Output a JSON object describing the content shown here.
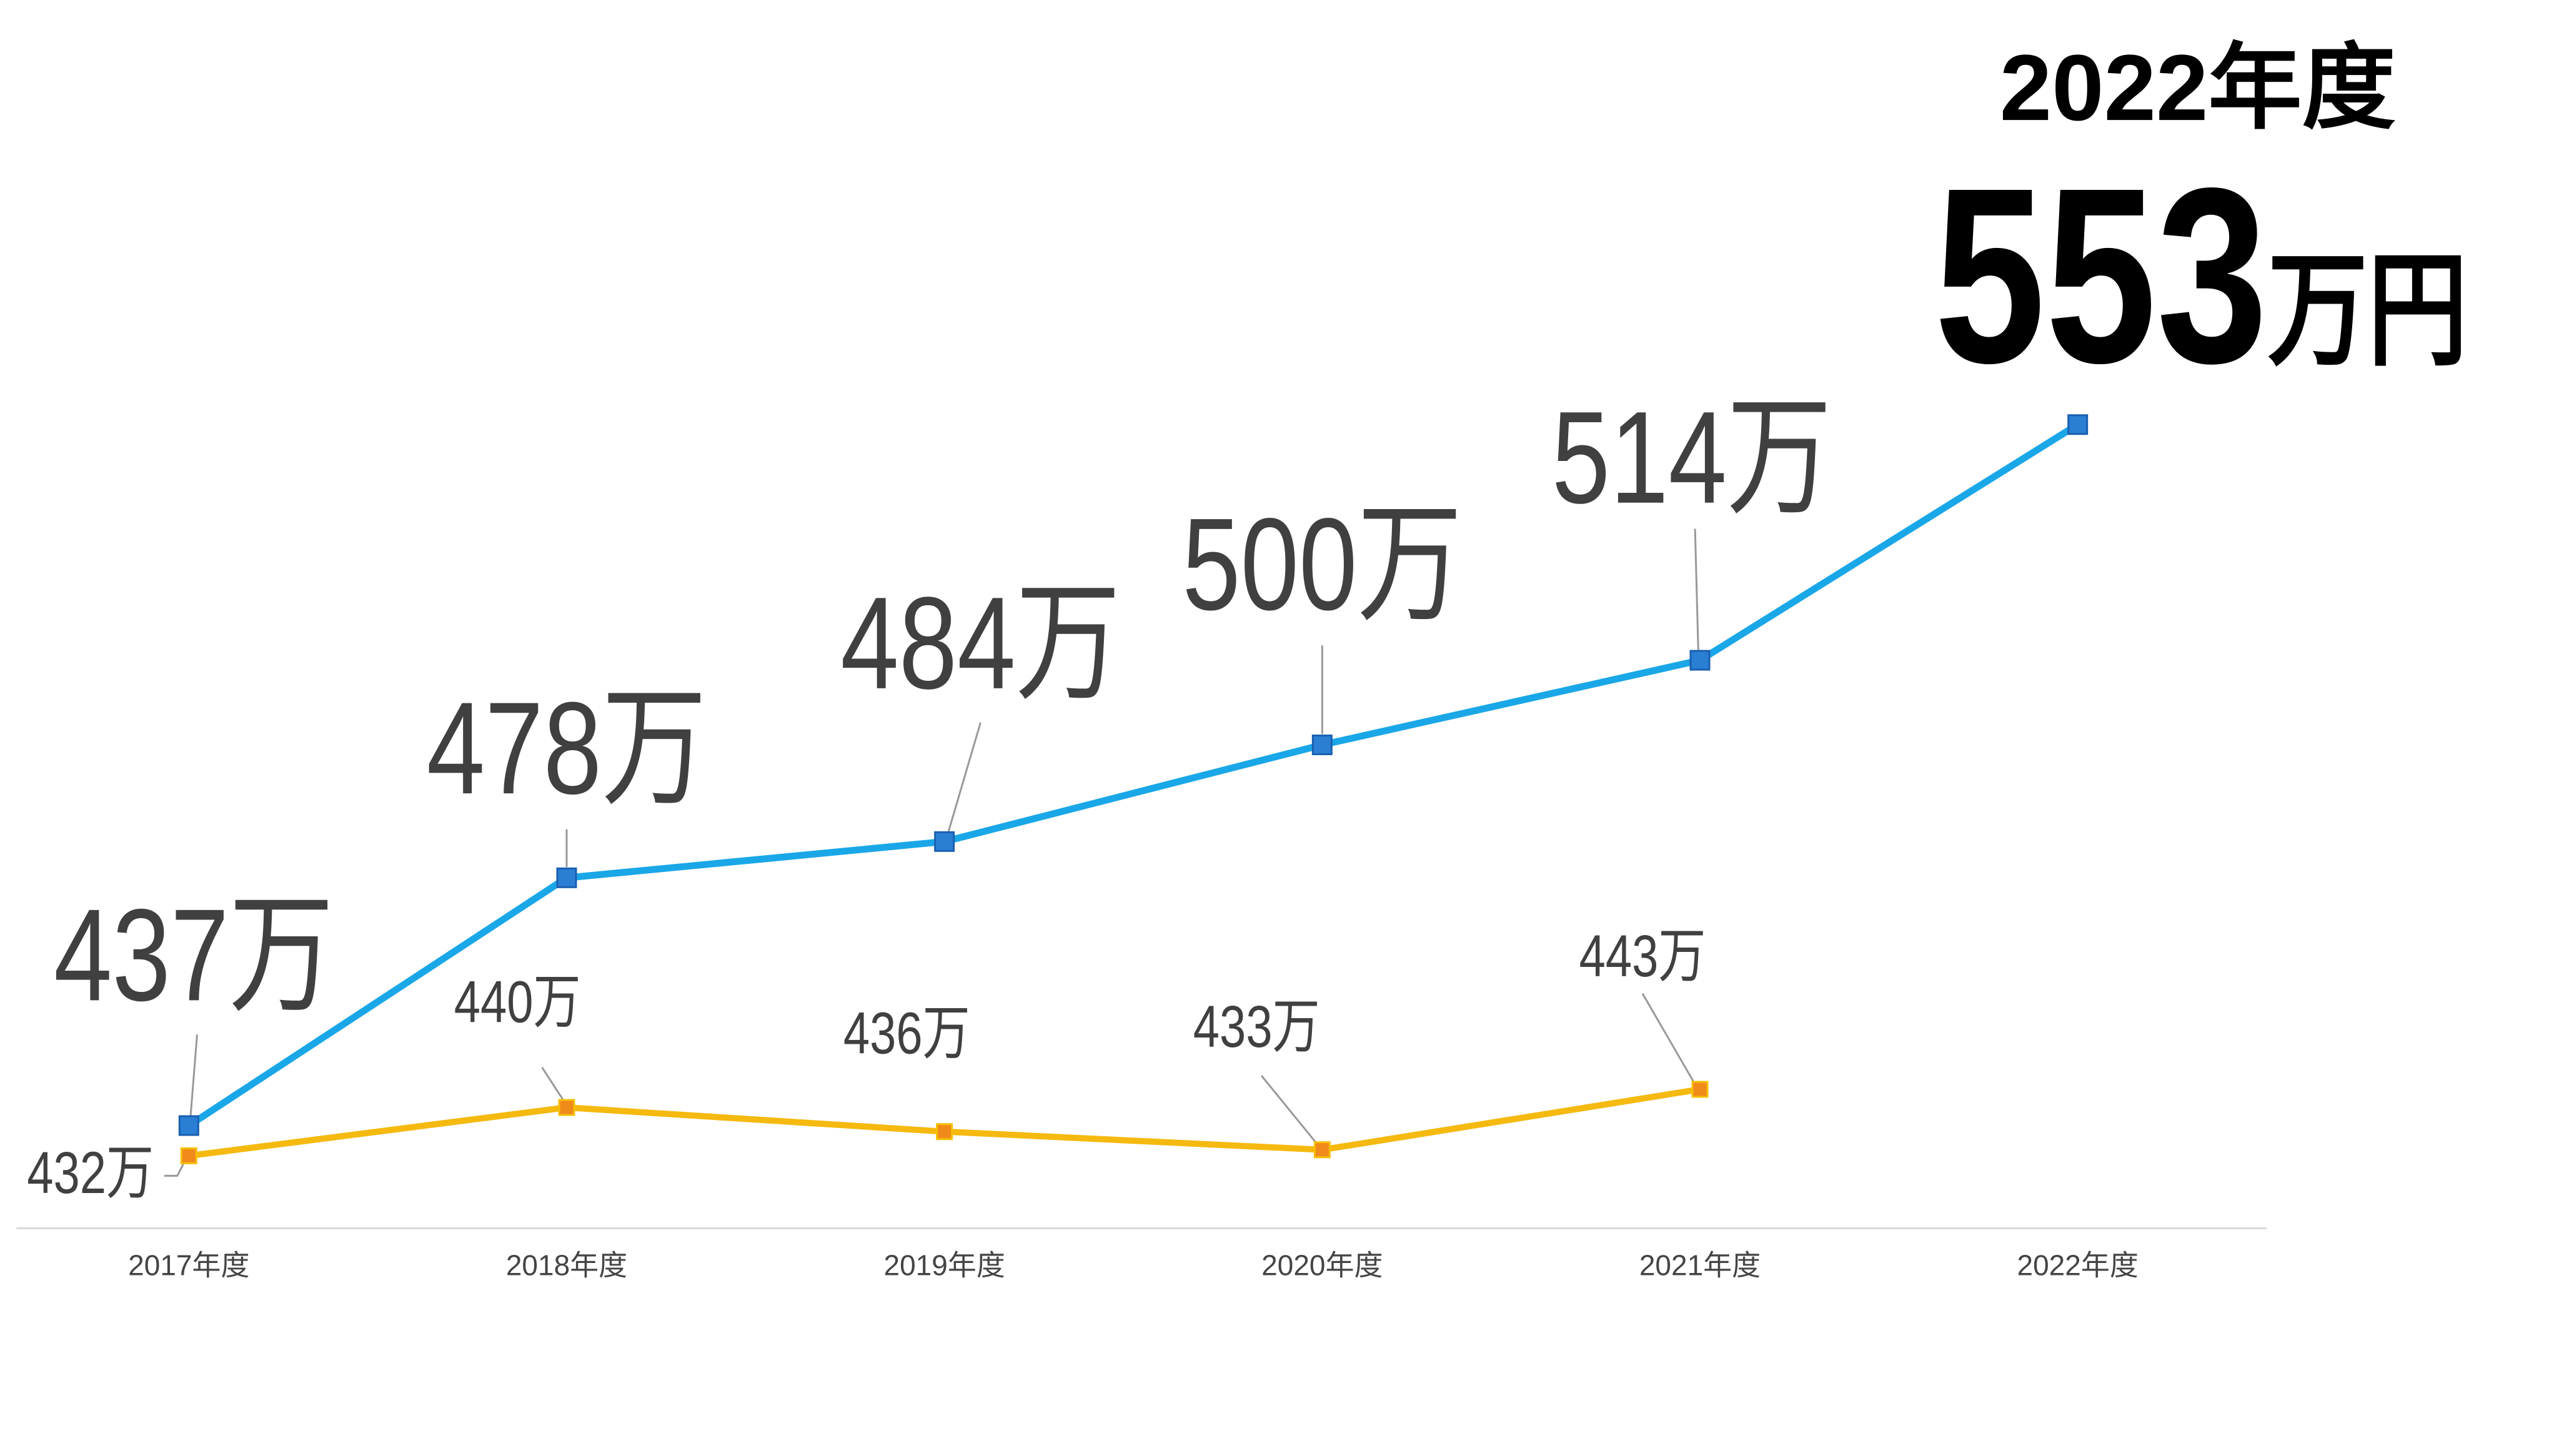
{
  "chart_data": {
    "type": "line",
    "categories": [
      "2017年度",
      "2018年度",
      "2019年度",
      "2020年度",
      "2021年度",
      "2022年度"
    ],
    "series": [
      {
        "color": "#1aa7e8",
        "marker_color": "#2a7fd4",
        "values": [
          437,
          478,
          484,
          500,
          514,
          553
        ],
        "value_labels": [
          "437万",
          "478万",
          "484万",
          "500万",
          "514万",
          "553万円"
        ]
      },
      {
        "color": "#f5b90f",
        "marker_color": "#f08a1a",
        "values": [
          432,
          440,
          436,
          433,
          443,
          null
        ],
        "value_labels": [
          "432万",
          "440万",
          "436万",
          "433万",
          "443万",
          null
        ]
      }
    ],
    "ylim": [
      420,
      620
    ],
    "grid": false
  }
}
